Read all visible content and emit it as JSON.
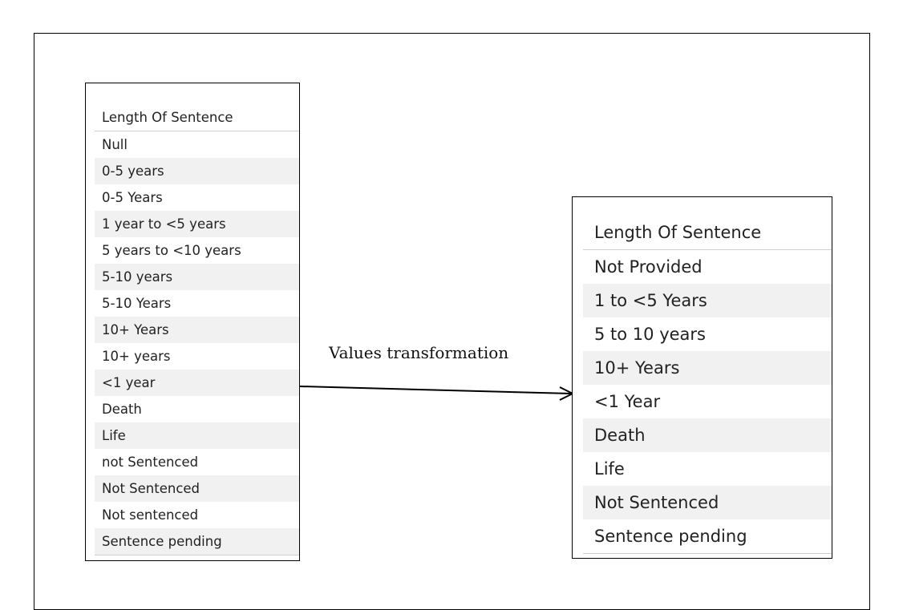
{
  "source_table": {
    "header": "Length Of Sentence",
    "rows": [
      "Null",
      "0-5 years",
      "0-5 Years",
      "1 year to <5 years",
      "5 years to <10 years",
      "5-10 years",
      "5-10 Years",
      "10+ Years",
      "10+ years",
      "<1 year",
      "Death",
      "Life",
      "not Sentenced",
      "Not Sentenced",
      "Not sentenced",
      "Sentence pending"
    ]
  },
  "arrow_label": "Values transformation",
  "target_table": {
    "header": "Length Of Sentence",
    "rows": [
      "Not Provided",
      "1 to <5 Years",
      "5 to 10 years",
      "10+ Years",
      "<1 Year",
      "Death",
      "Life",
      "Not Sentenced",
      "Sentence pending"
    ]
  }
}
